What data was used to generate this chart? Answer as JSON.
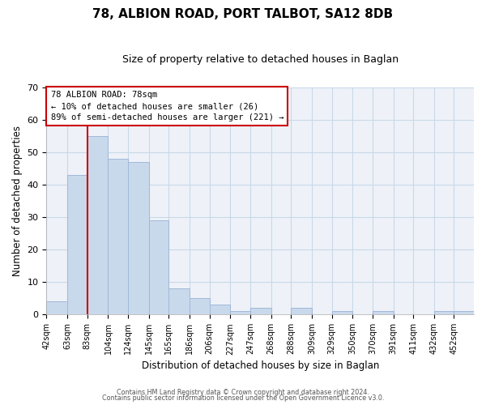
{
  "title": "78, ALBION ROAD, PORT TALBOT, SA12 8DB",
  "subtitle": "Size of property relative to detached houses in Baglan",
  "xlabel": "Distribution of detached houses by size in Baglan",
  "ylabel": "Number of detached properties",
  "bin_labels": [
    "42sqm",
    "63sqm",
    "83sqm",
    "104sqm",
    "124sqm",
    "145sqm",
    "165sqm",
    "186sqm",
    "206sqm",
    "227sqm",
    "247sqm",
    "268sqm",
    "288sqm",
    "309sqm",
    "329sqm",
    "350sqm",
    "370sqm",
    "391sqm",
    "411sqm",
    "432sqm",
    "452sqm"
  ],
  "bin_edges": [
    42,
    63,
    83,
    104,
    124,
    145,
    165,
    186,
    206,
    227,
    247,
    268,
    288,
    309,
    329,
    350,
    370,
    391,
    411,
    432,
    452
  ],
  "bar_heights": [
    4,
    43,
    55,
    48,
    47,
    29,
    8,
    5,
    3,
    1,
    2,
    0,
    2,
    0,
    1,
    0,
    1,
    0,
    0,
    1,
    1
  ],
  "bar_color": "#c9d9ec",
  "bar_edge_color": "#a0b8d8",
  "grid_color": "#c8d8e8",
  "vline_x": 83,
  "vline_color": "#cc0000",
  "ylim": [
    0,
    70
  ],
  "yticks": [
    0,
    10,
    20,
    30,
    40,
    50,
    60,
    70
  ],
  "annotation_line1": "78 ALBION ROAD: 78sqm",
  "annotation_line2": "← 10% of detached houses are smaller (26)",
  "annotation_line3": "89% of semi-detached houses are larger (221) →",
  "annotation_box_color": "#ffffff",
  "annotation_box_edge": "#cc0000",
  "footer_line1": "Contains HM Land Registry data © Crown copyright and database right 2024.",
  "footer_line2": "Contains public sector information licensed under the Open Government Licence v3.0.",
  "bg_color": "#ffffff",
  "plot_bg_color": "#eef2f8"
}
